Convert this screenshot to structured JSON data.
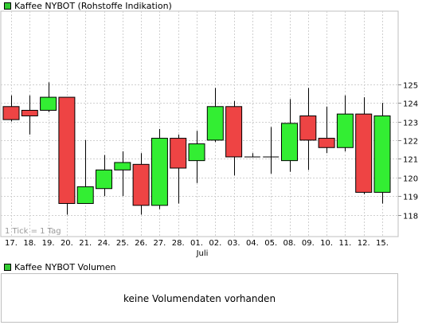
{
  "price_legend": {
    "label": "Kaffee NYBOT (Rohstoffe Indikation)",
    "color": "#33cc33"
  },
  "volume_legend": {
    "label": "Kaffee NYBOT Volumen",
    "color": "#33cc33"
  },
  "tick_note": "1 Tick = 1 Tag",
  "month_label": "Juli",
  "volume_message": "keine Volumendaten vorhanden",
  "colors": {
    "up": "#33ee33",
    "down": "#ee4444",
    "grid": "#d0d0d0",
    "border": "#bfbfbf"
  },
  "chart_data": {
    "type": "candlestick",
    "ylim": [
      117.3,
      125.8
    ],
    "yticks": [
      118,
      119,
      120,
      121,
      122,
      123,
      124,
      125
    ],
    "categories": [
      "17.",
      "18.",
      "19.",
      "20.",
      "21.",
      "24.",
      "25.",
      "26.",
      "27.",
      "28.",
      "01.",
      "02.",
      "03.",
      "04.",
      "05.",
      "08.",
      "09.",
      "10.",
      "11.",
      "12.",
      "15."
    ],
    "open": [
      123.8,
      123.6,
      123.6,
      124.3,
      118.6,
      119.4,
      120.4,
      120.7,
      118.5,
      122.1,
      120.9,
      122.0,
      123.8,
      121.1,
      121.1,
      120.9,
      123.3,
      122.1,
      121.6,
      123.4,
      119.2
    ],
    "close": [
      123.1,
      123.3,
      124.3,
      118.6,
      119.5,
      120.4,
      120.8,
      118.5,
      122.1,
      120.5,
      121.8,
      123.8,
      121.1,
      121.1,
      121.1,
      122.9,
      122.0,
      121.6,
      123.4,
      119.2,
      123.3
    ],
    "high": [
      124.4,
      124.4,
      125.1,
      124.3,
      122.0,
      121.2,
      121.4,
      121.3,
      122.6,
      122.3,
      122.5,
      124.8,
      124.1,
      121.3,
      122.7,
      124.2,
      124.8,
      123.8,
      124.4,
      124.3,
      124.0
    ],
    "low": [
      123.0,
      122.3,
      123.5,
      118.0,
      118.6,
      119.0,
      119.0,
      118.0,
      118.3,
      118.6,
      119.7,
      121.9,
      120.1,
      121.1,
      120.2,
      120.3,
      120.4,
      121.3,
      121.4,
      119.1,
      118.6
    ],
    "month_break_index": 10
  }
}
